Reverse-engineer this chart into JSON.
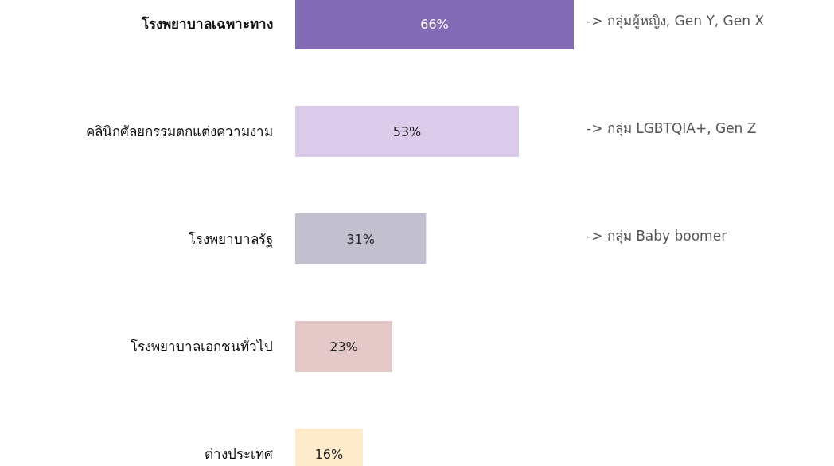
{
  "chart_data": {
    "type": "bar",
    "orientation": "horizontal",
    "categories": [
      "โรงพยาบาลเฉพาะทาง",
      "คลินิกศัลยกรรมตกแต่งความงาม",
      "โรงพยาบาลรัฐ",
      "โรงพยาบาลเอกชนทั่วไป",
      "ต่างประเทศ"
    ],
    "values": [
      66,
      53,
      31,
      23,
      16
    ],
    "colors": [
      "#836bb5",
      "#dccbeb",
      "#c2bfcf",
      "#e5c8c8",
      "#fdebcc"
    ],
    "value_labels": [
      "66%",
      "53%",
      "31%",
      "23%",
      "16%"
    ],
    "annotations": [
      "-> กลุ่มผู้หญิง, Gen Y, Gen X",
      "-> กลุ่ม LGBTQIA+, Gen Z",
      "-> กลุ่ม Baby boomer"
    ]
  }
}
